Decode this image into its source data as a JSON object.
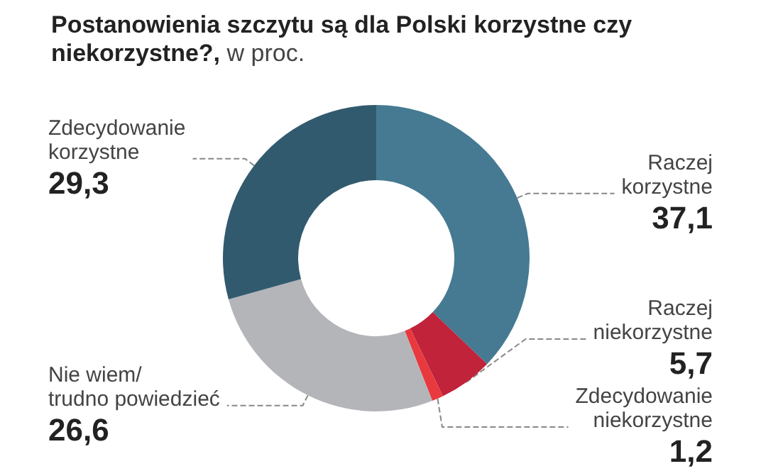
{
  "chart_data": {
    "type": "donut",
    "title": "Postanowienia szczytu są dla Polski korzystne czy niekorzystne?,",
    "subtitle": "w proc.",
    "categories": [
      "Raczej korzystne",
      "Raczej niekorzystne",
      "Zdecydowanie niekorzystne",
      "Nie wiem/ trudno powiedzieć",
      "Zdecydowanie korzystne"
    ],
    "values": [
      37.1,
      5.7,
      1.2,
      26.6,
      29.3
    ],
    "value_labels": [
      "37,1",
      "5,7",
      "1,2",
      "26,6",
      "29,3"
    ],
    "colors": [
      "#457a92",
      "#c0233a",
      "#e8393e",
      "#b4b5b9",
      "#325a6e"
    ],
    "legend": false
  }
}
